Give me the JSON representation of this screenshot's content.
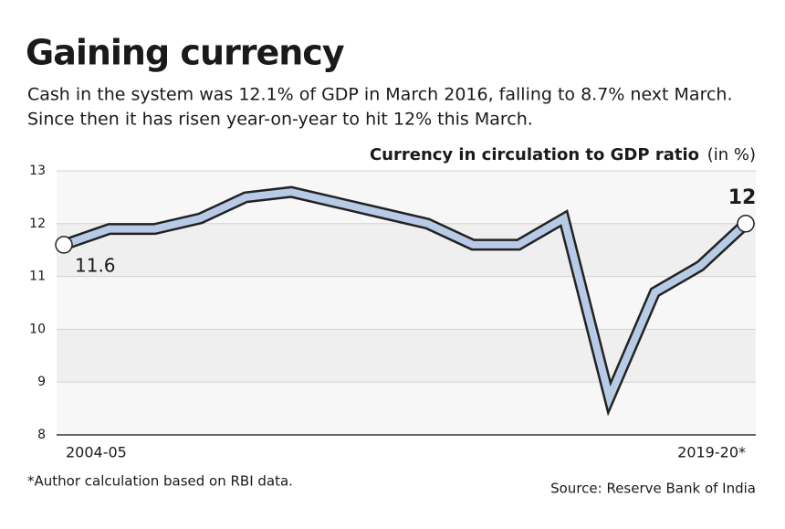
{
  "title": "Gaining currency",
  "subtitle_lines": [
    "Cash in the system was 12.1% of GDP in March 2016, falling to 8.7% next March.",
    "Since then it has risen year-on-year to hit 12% this March."
  ],
  "chart_data": {
    "type": "line",
    "y_axis_title": "Currency in circulation to GDP ratio",
    "y_axis_unit": "(in %)",
    "categories": [
      "2004-05",
      null,
      null,
      null,
      null,
      null,
      null,
      null,
      null,
      null,
      null,
      null,
      null,
      null,
      null,
      "2019-20*"
    ],
    "series": [
      {
        "color": "#b8cbe6",
        "values": [
          11.6,
          11.9,
          11.9,
          12.1,
          12.5,
          12.6,
          12.4,
          12.2,
          12.0,
          11.6,
          11.6,
          12.1,
          8.7,
          10.7,
          11.2,
          12
        ],
        "value_labels": [
          "11.6",
          null,
          null,
          null,
          null,
          null,
          null,
          null,
          null,
          null,
          null,
          null,
          null,
          null,
          null,
          "12"
        ]
      }
    ],
    "ylim": [
      8,
      13
    ],
    "yticks": [
      8,
      9,
      10,
      11,
      12,
      13
    ],
    "grid": true
  },
  "footnote": "*Author calculation based on RBI data.",
  "source": "Source: Reserve Bank of India"
}
